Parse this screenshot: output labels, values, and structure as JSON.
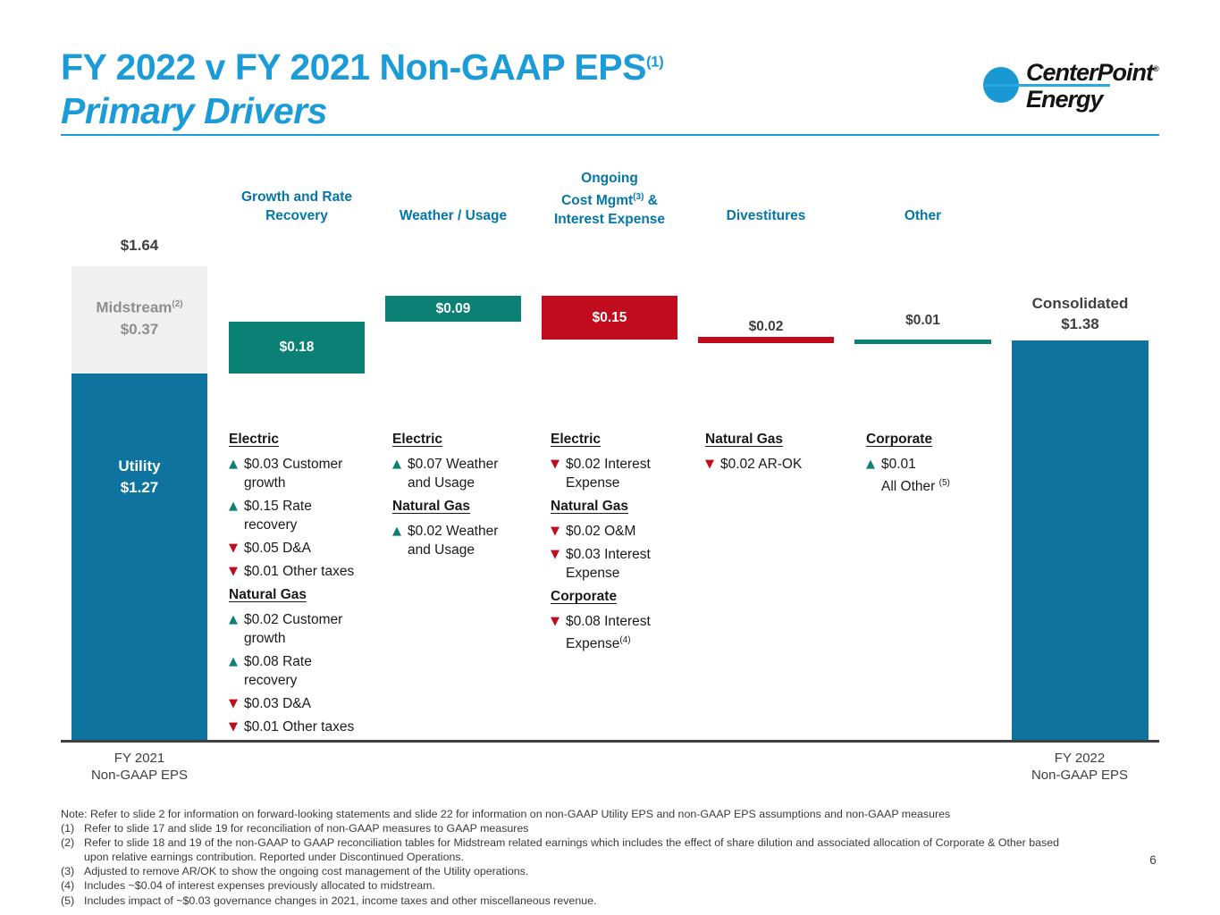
{
  "title": {
    "line1": "FY 2022 v FY 2021 Non-GAAP EPS",
    "sup": "(1)",
    "line2": "Primary Drivers"
  },
  "logo": {
    "name": "CenterPoint",
    "reg": "®",
    "sub": "Energy"
  },
  "page_number": "6",
  "colors": {
    "title_blue": "#1B9BD8",
    "header_blue": "#0576A8",
    "increase_teal": "#0A8174",
    "decrease_red": "#C00C1C",
    "utility_blue": "#0F73A0",
    "midstream_gray": "#F0F0EE"
  },
  "chart_data": {
    "type": "bar",
    "subtype": "waterfall",
    "title": "FY 2022 v FY 2021 Non-GAAP EPS Primary Drivers",
    "unit": "USD per share (non-GAAP EPS)",
    "categories": [
      "FY 2021 Non-GAAP EPS",
      "Growth and Rate Recovery",
      "Weather / Usage",
      "Ongoing Cost Mgmt & Interest Expense",
      "Divestitures",
      "Other",
      "FY 2022 Non-GAAP EPS"
    ],
    "values": [
      1.64,
      0.18,
      0.09,
      -0.15,
      -0.02,
      0.01,
      1.38
    ],
    "bar_roles": [
      "total",
      "increase",
      "increase",
      "decrease",
      "decrease",
      "increase",
      "total"
    ],
    "bar_labels": [
      "$1.64",
      "$0.18",
      "$0.09",
      "$0.15",
      "$0.02",
      "$0.01",
      "$1.38"
    ],
    "fy2021_breakdown": {
      "Utility": 1.27,
      "Midstream": 0.37
    },
    "ylim": [
      0,
      1.9
    ],
    "grid": false,
    "legend": false
  },
  "chart": {
    "start_label": "$1.64",
    "fy2021": {
      "midstream_label": "Midstream",
      "midstream_sup": "(2)",
      "midstream_value": "$0.37",
      "utility_label": "Utility",
      "utility_value": "$1.27",
      "axis_label": "FY 2021\nNon-GAAP EPS"
    },
    "fy2022": {
      "label": "Consolidated\n$1.38",
      "axis_label": "FY 2022\nNon-GAAP EPS"
    },
    "headers": {
      "growth": "Growth and Rate\nRecovery",
      "weather": "Weather / Usage",
      "costmgmt_pre": "Ongoing\nCost Mgmt",
      "costmgmt_sup": "(3)",
      "costmgmt_post": " &\nInterest Expense",
      "divestitures": "Divestitures",
      "other": "Other"
    },
    "bar_values": {
      "growth": "$0.18",
      "weather": "$0.09",
      "costmgmt": "$0.15",
      "divestitures": "$0.02",
      "other": "$0.01"
    }
  },
  "details": {
    "growth": {
      "groups": [
        {
          "heading": "Electric",
          "items": [
            {
              "dir": "up",
              "bullet": "▲",
              "text": "$0.03 Customer\ngrowth"
            },
            {
              "dir": "up",
              "bullet": "▲",
              "text": "$0.15 Rate\nrecovery"
            },
            {
              "dir": "down",
              "bullet": "▼",
              "text": "$0.05 D&A"
            },
            {
              "dir": "down",
              "bullet": "▼",
              "text": "$0.01 Other taxes"
            }
          ]
        },
        {
          "heading": "Natural Gas",
          "items": [
            {
              "dir": "up",
              "bullet": "▲",
              "text": "$0.02 Customer\ngrowth"
            },
            {
              "dir": "up",
              "bullet": "▲",
              "text": "$0.08 Rate\nrecovery"
            },
            {
              "dir": "down",
              "bullet": "▼",
              "text": "$0.03 D&A"
            },
            {
              "dir": "down",
              "bullet": "▼",
              "text": "$0.01 Other taxes"
            }
          ]
        }
      ]
    },
    "weather": {
      "groups": [
        {
          "heading": "Electric",
          "items": [
            {
              "dir": "up",
              "bullet": "▲",
              "text": "$0.07 Weather\nand Usage"
            }
          ]
        },
        {
          "heading": "Natural Gas",
          "items": [
            {
              "dir": "up",
              "bullet": "▲",
              "text": "$0.02 Weather\nand Usage"
            }
          ]
        }
      ]
    },
    "costmgmt": {
      "groups": [
        {
          "heading": "Electric",
          "items": [
            {
              "dir": "down",
              "bullet": "▼",
              "text": "$0.02 Interest\nExpense"
            }
          ]
        },
        {
          "heading": "Natural Gas",
          "items": [
            {
              "dir": "down",
              "bullet": "▼",
              "text": "$0.02 O&M"
            },
            {
              "dir": "down",
              "bullet": "▼",
              "text": "$0.03 Interest\nExpense"
            }
          ]
        },
        {
          "heading": "Corporate",
          "items": [
            {
              "dir": "down",
              "bullet": "▼",
              "text": "$0.08 Interest\nExpense",
              "sup": "(4)"
            }
          ]
        }
      ]
    },
    "divestitures": {
      "groups": [
        {
          "heading": "Natural Gas",
          "items": [
            {
              "dir": "down",
              "bullet": "▼",
              "text": "$0.02 AR-OK"
            }
          ]
        }
      ]
    },
    "other": {
      "groups": [
        {
          "heading": "Corporate",
          "items": [
            {
              "dir": "up",
              "bullet": "▲",
              "text": "$0.01\nAll Other ",
              "sup": "(5)"
            }
          ]
        }
      ]
    }
  },
  "footnotes": {
    "note": "Note: Refer to slide 2 for information on forward-looking statements and slide 22 for information on non-GAAP Utility EPS and non-GAAP EPS assumptions and non-GAAP measures",
    "items": [
      {
        "num": "(1)",
        "text": "Refer to slide 17 and slide 19 for reconciliation of non-GAAP measures to GAAP measures"
      },
      {
        "num": "(2)",
        "text": "Refer to slide 18 and 19 of the non-GAAP to GAAP reconciliation tables for Midstream related earnings which includes the effect of share dilution and associated allocation of Corporate & Other based\nupon relative earnings contribution. Reported under Discontinued Operations."
      },
      {
        "num": "(3)",
        "text": "Adjusted to remove AR/OK to show the ongoing cost management of the Utility operations."
      },
      {
        "num": "(4)",
        "text": "Includes ~$0.04 of interest expenses previously allocated to midstream."
      },
      {
        "num": "(5)",
        "text": "Includes impact of ~$0.03 governance changes in 2021, income taxes and other miscellaneous revenue."
      }
    ]
  }
}
